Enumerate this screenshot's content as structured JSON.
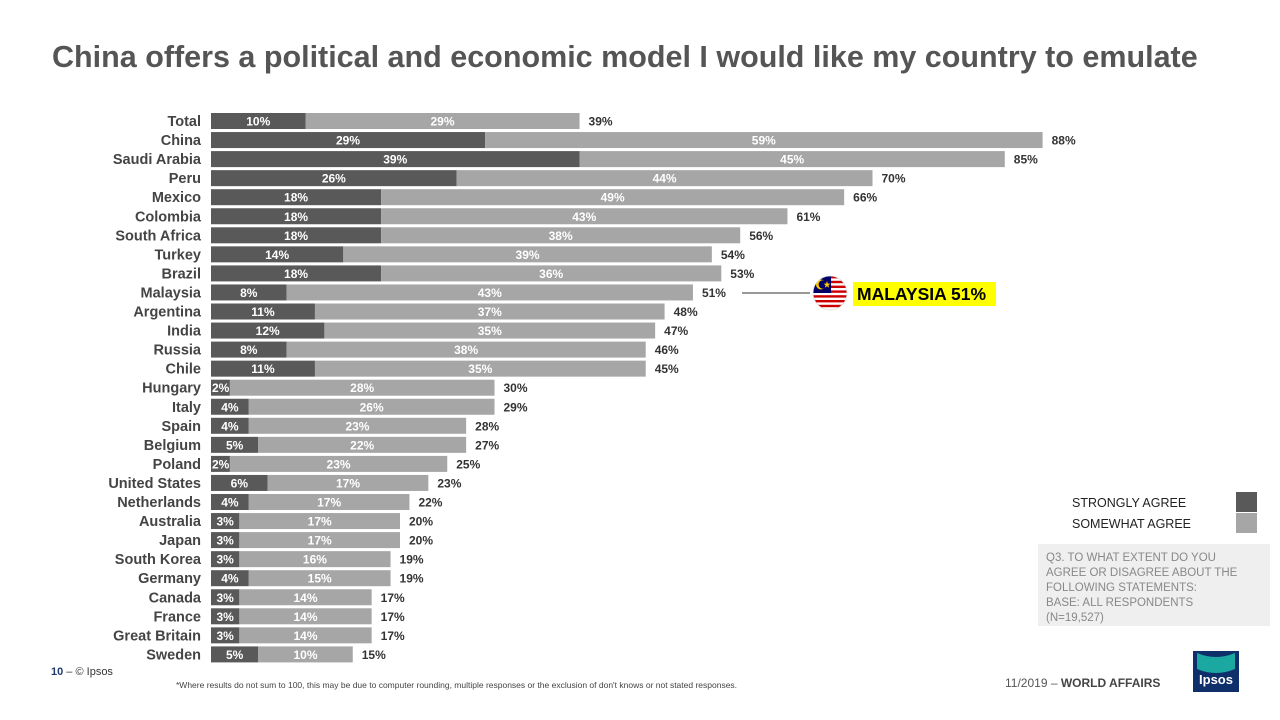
{
  "title": "China offers a political and economic model I would like my country to emulate",
  "colors": {
    "strongly": "#595959",
    "somewhat": "#a6a6a6",
    "highlight": "#ffff00"
  },
  "legend": {
    "strongly": "STRONGLY AGREE",
    "somewhat": "SOMEWHAT AGREE"
  },
  "note": {
    "lines": [
      "Q3. TO WHAT EXTENT DO YOU",
      "AGREE OR DISAGREE ABOUT THE",
      "FOLLOWING STATEMENTS:",
      "BASE: ALL RESPONDENTS",
      "(N=19,527)"
    ]
  },
  "callout": {
    "text": "MALAYSIA 51%",
    "flag": "malaysia-flag"
  },
  "footer": {
    "page_number": "10",
    "dash": " – ",
    "copyright": "© Ipsos",
    "footnote": "*Where results do not sum to 100, this may be due to computer rounding, multiple responses or the exclusion of don't knows or not stated responses.",
    "date": "11/2019",
    "report": "WORLD AFFAIRS",
    "logo_text": "Ipsos"
  },
  "chart_data": {
    "type": "bar",
    "orientation": "horizontal",
    "stacked": true,
    "title": "China offers a political and economic model I would like my country to emulate",
    "categories": [
      "Total",
      "China",
      "Saudi Arabia",
      "Peru",
      "Mexico",
      "Colombia",
      "South Africa",
      "Turkey",
      "Brazil",
      "Malaysia",
      "Argentina",
      "India",
      "Russia",
      "Chile",
      "Hungary",
      "Italy",
      "Spain",
      "Belgium",
      "Poland",
      "United States",
      "Netherlands",
      "Australia",
      "Japan",
      "South Korea",
      "Germany",
      "Canada",
      "France",
      "Great Britain",
      "Sweden"
    ],
    "series": [
      {
        "name": "STRONGLY AGREE",
        "values": [
          10,
          29,
          39,
          26,
          18,
          18,
          18,
          14,
          18,
          8,
          11,
          12,
          8,
          11,
          2,
          4,
          4,
          5,
          2,
          6,
          4,
          3,
          3,
          3,
          4,
          3,
          3,
          3,
          5
        ]
      },
      {
        "name": "SOMEWHAT AGREE",
        "values": [
          29,
          59,
          45,
          44,
          49,
          43,
          38,
          39,
          36,
          43,
          37,
          35,
          38,
          35,
          28,
          26,
          23,
          22,
          23,
          17,
          17,
          17,
          17,
          16,
          15,
          14,
          14,
          14,
          10
        ]
      }
    ],
    "totals": [
      39,
      88,
      85,
      70,
      66,
      61,
      56,
      54,
      53,
      51,
      48,
      47,
      46,
      45,
      30,
      29,
      28,
      27,
      25,
      23,
      22,
      20,
      20,
      19,
      19,
      17,
      17,
      17,
      15
    ],
    "value_suffix": "%",
    "xlim": [
      0,
      100
    ],
    "grid": false,
    "legend_position": "bottom-right",
    "highlight_category": "Malaysia"
  }
}
